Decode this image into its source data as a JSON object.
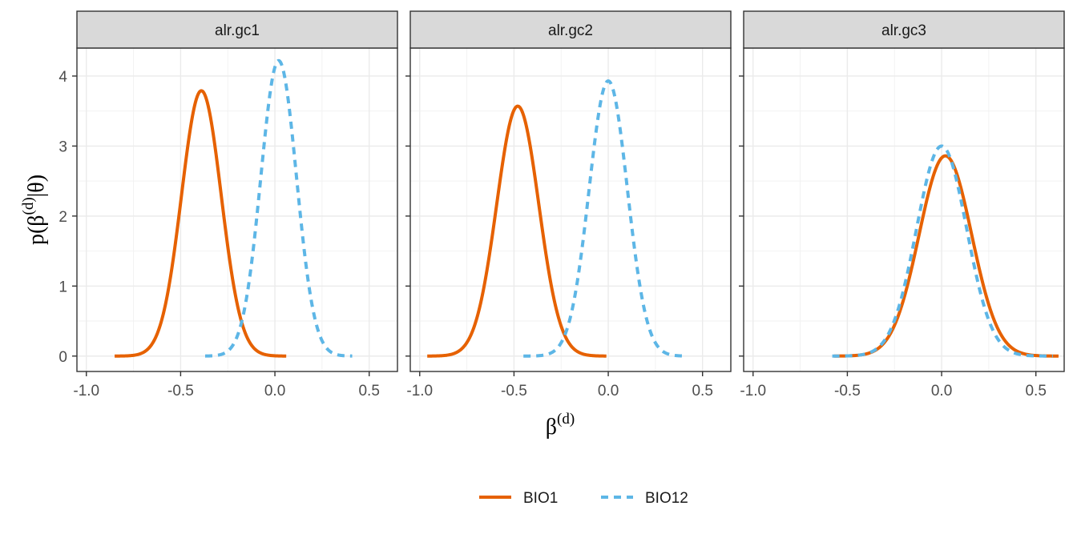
{
  "chart_data": {
    "type": "line",
    "ylabel_parts": {
      "base": "p(β",
      "sup": "(d)",
      "tail": "|θ)"
    },
    "xlabel_parts": {
      "base": "β",
      "sup": "(d)"
    },
    "xlim": [
      -1.05,
      0.65
    ],
    "ylim": [
      -0.22,
      4.4
    ],
    "x_ticks": [
      -1.0,
      -0.5,
      0.0,
      0.5
    ],
    "x_tick_labels": [
      "-1.0",
      "-0.5",
      "0.0",
      "0.5"
    ],
    "y_ticks": [
      0,
      1,
      2,
      3,
      4
    ],
    "y_tick_labels": [
      "0",
      "1",
      "2",
      "3",
      "4"
    ],
    "grid": true,
    "legend_position": "bottom",
    "colors": {
      "BIO1": "#E66100",
      "BIO12": "#5DB6E6"
    },
    "series_styles": {
      "BIO1": "solid",
      "BIO12": "dashed"
    },
    "legend": [
      {
        "name": "BIO1",
        "color": "#E66100",
        "style": "solid"
      },
      {
        "name": "BIO12",
        "color": "#5DB6E6",
        "style": "dashed"
      }
    ],
    "panels": [
      {
        "strip": "alr.gc1",
        "series": [
          {
            "name": "BIO1",
            "mean": -0.39,
            "peak": 3.79,
            "x_range": [
              -0.85,
              0.06
            ]
          },
          {
            "name": "BIO12",
            "mean": 0.02,
            "peak": 4.22,
            "x_range": [
              -0.37,
              0.41
            ]
          }
        ]
      },
      {
        "strip": "alr.gc2",
        "series": [
          {
            "name": "BIO1",
            "mean": -0.48,
            "peak": 3.57,
            "x_range": [
              -0.96,
              -0.01
            ]
          },
          {
            "name": "BIO12",
            "mean": 0.0,
            "peak": 3.93,
            "x_range": [
              -0.45,
              0.4
            ]
          }
        ]
      },
      {
        "strip": "alr.gc3",
        "series": [
          {
            "name": "BIO1",
            "mean": 0.02,
            "peak": 2.86,
            "x_range": [
              -0.57,
              0.62
            ]
          },
          {
            "name": "BIO12",
            "mean": 0.0,
            "peak": 3.0,
            "x_range": [
              -0.58,
              0.59
            ]
          }
        ]
      }
    ]
  }
}
